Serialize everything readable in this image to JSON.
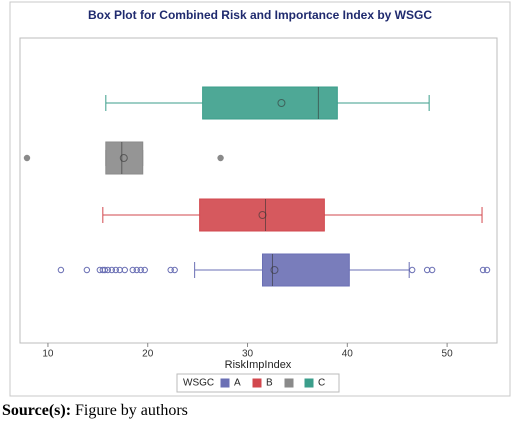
{
  "chart_data": {
    "type": "box",
    "title": "Box Plot for Combined Risk and Importance Index by WSGC",
    "x_label": "RiskImpIndex",
    "legend_title": "WSGC",
    "xlim": [
      7.2,
      55
    ],
    "xticks": [
      10,
      20,
      30,
      40,
      50
    ],
    "series": [
      {
        "name": "A",
        "color": "#6a6fb4",
        "whisker_low": 24.7,
        "q1": 31.5,
        "median": 32.5,
        "q3": 40.2,
        "whisker_high": 46.2,
        "mean": 32.7,
        "outliers": [
          11.3,
          13.9,
          15.2,
          15.5,
          15.7,
          16.0,
          16.4,
          16.8,
          17.2,
          17.7,
          18.5,
          18.9,
          19.3,
          19.7,
          22.3,
          22.7,
          46.5,
          48.0,
          48.5,
          53.6,
          54.0
        ]
      },
      {
        "name": "B",
        "color": "#d2474d",
        "whisker_low": 15.5,
        "q1": 25.2,
        "median": 31.8,
        "q3": 37.7,
        "whisker_high": 53.5,
        "mean": 31.5,
        "outliers": []
      },
      {
        "name": null,
        "color": "#8a8a8a",
        "whisker_low": 15.8,
        "q1": 15.8,
        "median": 17.4,
        "q3": 19.5,
        "whisker_high": 19.5,
        "mean": 17.6,
        "outliers": [
          7.9,
          27.3
        ]
      },
      {
        "name": "C",
        "color": "#3b9e8b",
        "whisker_low": 15.8,
        "q1": 25.5,
        "median": 37.1,
        "q3": 39.0,
        "whisker_high": 48.2,
        "mean": 33.4,
        "outliers": []
      }
    ]
  },
  "caption": {
    "label": "Source(s):",
    "text": "Figure by authors"
  }
}
